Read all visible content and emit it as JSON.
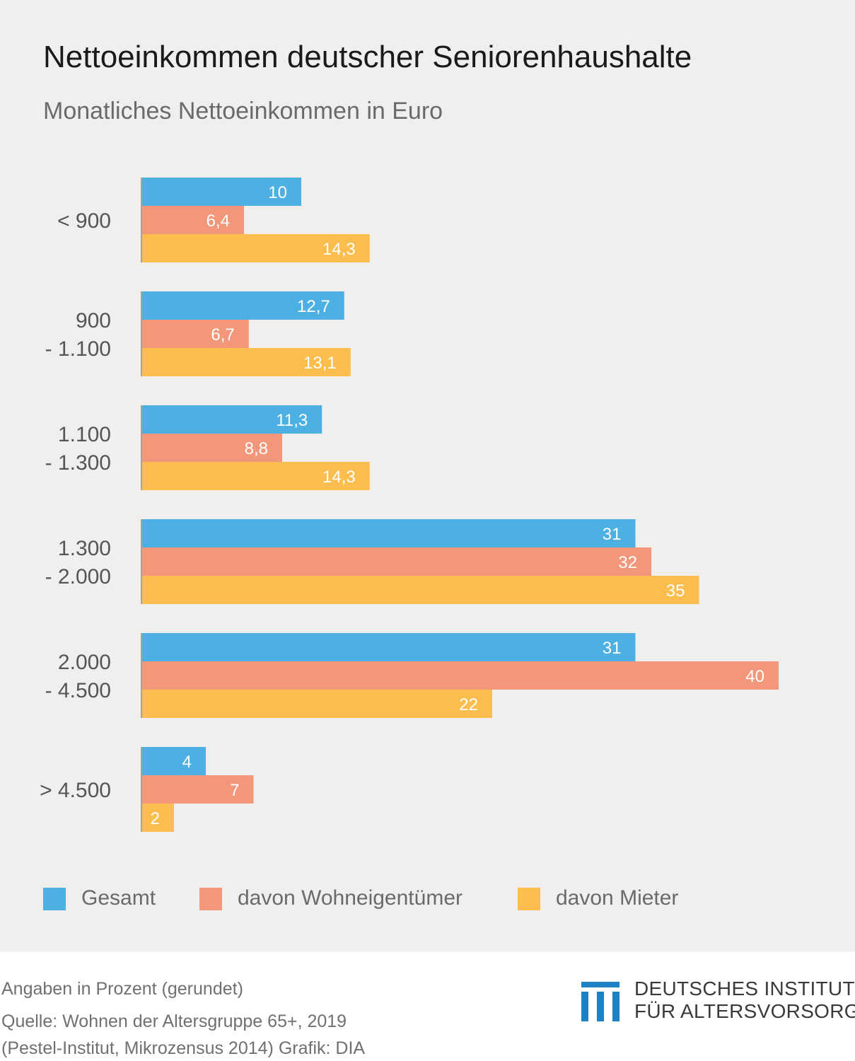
{
  "header": {
    "title": "Nettoeinkommen deutscher Seniorenhaushalte",
    "subtitle": "Monatliches Nettoeinkommen in Euro"
  },
  "colors": {
    "gesamt": "#4db0e3",
    "eigentuemer": "#f2977a",
    "mieter": "#fcbd4f",
    "axis": "#a8a29a",
    "logo": "#1d82c4"
  },
  "chart_data": {
    "type": "bar",
    "orientation": "horizontal",
    "categories": [
      [
        "< 900"
      ],
      [
        "900",
        "- 1.100"
      ],
      [
        "1.100",
        "- 1.300"
      ],
      [
        "1.300",
        "- 2.000"
      ],
      [
        "2.000",
        "- 4.500"
      ],
      [
        "> 4.500"
      ]
    ],
    "series": [
      {
        "name": "Gesamt",
        "color": "#4db0e3",
        "values": [
          10,
          12.7,
          11.3,
          31,
          31,
          4
        ],
        "labels": [
          "10",
          "12,7",
          "11,3",
          "31",
          "31",
          "4"
        ]
      },
      {
        "name": "davon Wohneigentümer",
        "color": "#f2977a",
        "values": [
          6.4,
          6.7,
          8.8,
          32,
          40,
          7
        ],
        "labels": [
          "6,4",
          "6,7",
          "8,8",
          "32",
          "40",
          "7"
        ]
      },
      {
        "name": "davon Mieter",
        "color": "#fcbd4f",
        "values": [
          14.3,
          13.1,
          14.3,
          35,
          22,
          2
        ],
        "labels": [
          "14,3",
          "13,1",
          "14,3",
          "35",
          "22",
          "2"
        ]
      }
    ],
    "grid": false,
    "legend_position": "bottom-left"
  },
  "legend": {
    "items": [
      {
        "label": "Gesamt",
        "color": "#4db0e3"
      },
      {
        "label": "davon Wohneigentümer",
        "color": "#f2977a"
      },
      {
        "label": "davon Mieter",
        "color": "#fcbd4f"
      }
    ]
  },
  "footer": {
    "note": "Angaben in Prozent (gerundet)",
    "source": "Quelle: Wohnen der Altersgruppe 65+, 2019",
    "source2": "(Pestel-Institut, Mikrozensus 2014)  Grafik: DIA"
  },
  "logo": {
    "line1": "DEUTSCHES INSTITUT",
    "line2": "FÜR ALTERSVORSORGE"
  }
}
